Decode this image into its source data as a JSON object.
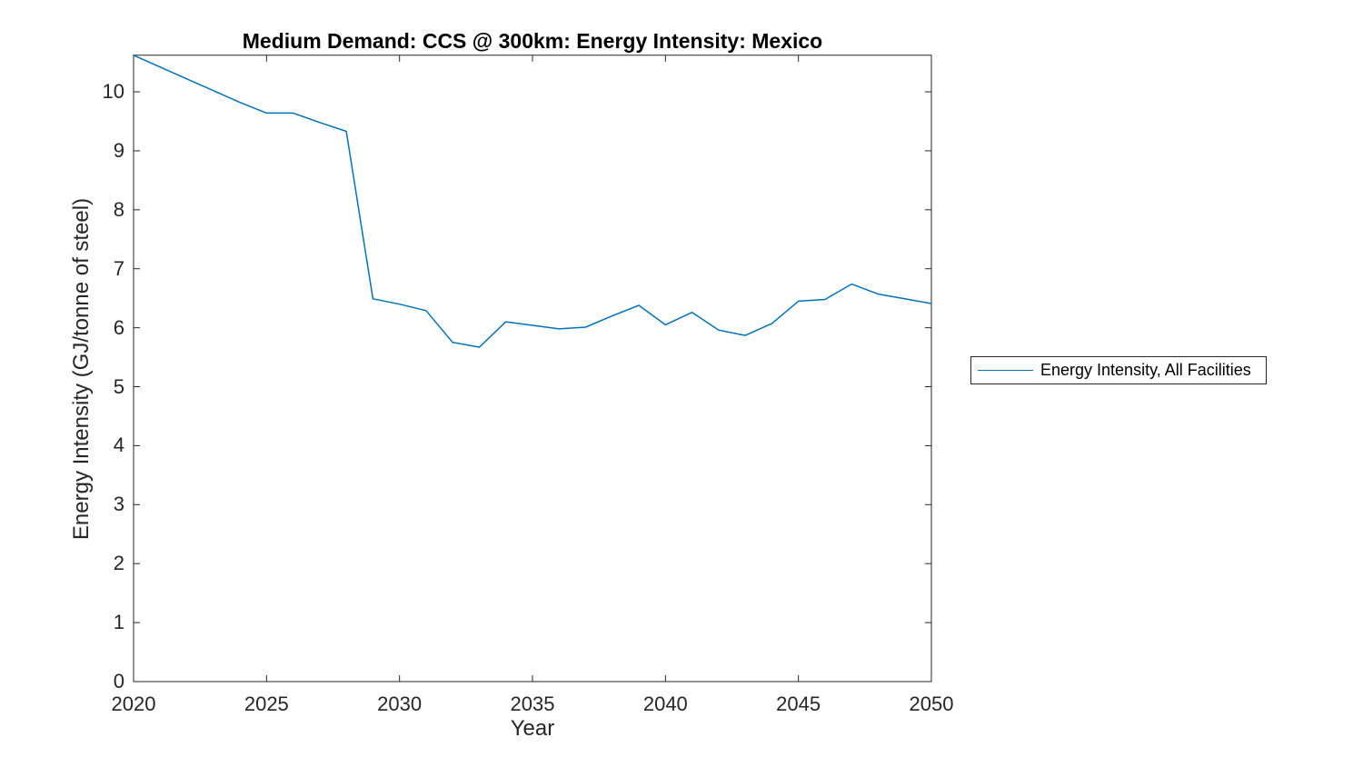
{
  "figure": {
    "title": "Medium Demand: CCS @ 300km: Energy Intensity: Mexico",
    "xlabel": "Year",
    "ylabel": "Energy Intensity (GJ/tonne of steel)"
  },
  "legend": {
    "entries": [
      {
        "label": "Energy Intensity, All Facilities",
        "color": "#0072BD"
      }
    ]
  },
  "colors": {
    "line": "#0072BD",
    "axis": "#262626",
    "tick_label": "#262626",
    "title": "#000000",
    "background": "#ffffff"
  },
  "chart_data": {
    "type": "line",
    "title": "Medium Demand: CCS @ 300km: Energy Intensity: Mexico",
    "xlabel": "Year",
    "ylabel": "Energy Intensity (GJ/tonne of steel)",
    "x": [
      2020,
      2021,
      2022,
      2023,
      2024,
      2025,
      2026,
      2027,
      2028,
      2029,
      2030,
      2031,
      2032,
      2033,
      2034,
      2035,
      2036,
      2037,
      2038,
      2039,
      2040,
      2041,
      2042,
      2043,
      2044,
      2045,
      2046,
      2047,
      2048,
      2049,
      2050
    ],
    "series": [
      {
        "name": "Energy Intensity, All Facilities",
        "color": "#0072BD",
        "values": [
          10.62,
          10.42,
          10.22,
          10.02,
          9.82,
          9.64,
          9.64,
          9.48,
          9.33,
          6.49,
          6.4,
          6.29,
          5.75,
          5.67,
          6.1,
          6.04,
          5.98,
          6.01,
          6.2,
          6.38,
          6.05,
          6.26,
          5.96,
          5.87,
          6.07,
          6.45,
          6.48,
          6.74,
          6.57,
          6.49,
          6.41
        ]
      }
    ],
    "xlim": [
      2020,
      2050
    ],
    "ylim": [
      0,
      10.62
    ],
    "xticks": [
      2020,
      2025,
      2030,
      2035,
      2040,
      2045,
      2050
    ],
    "yticks": [
      0,
      1,
      2,
      3,
      4,
      5,
      6,
      7,
      8,
      9,
      10
    ],
    "grid": false,
    "box": true,
    "tick_direction": "in",
    "legend_position": "outside-right"
  }
}
